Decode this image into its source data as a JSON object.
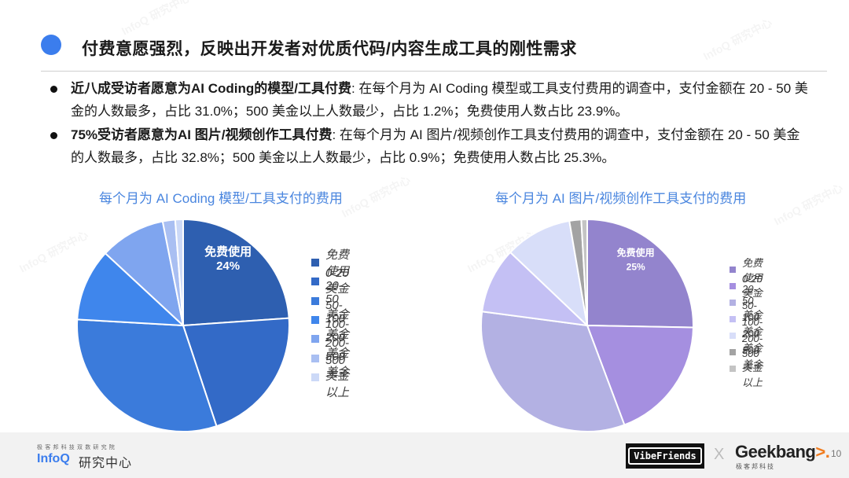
{
  "header": {
    "title": "付费意愿强烈，反映出开发者对优质代码/内容生成工具的刚性需求"
  },
  "bullets": [
    {
      "bold": "近八成受访者愿意为AI Coding的模型/工具付费",
      "text": ": 在每个月为 AI Coding 模型或工具支付费用的调查中，支付金额在 20 - 50 美金的人数最多，占比 31.0%；500 美金以上人数最少，占比 1.2%；免费使用人数占比 23.9%。"
    },
    {
      "bold": "75%受访者愿意为AI 图片/视频创作工具付费",
      "text": ": 在每个月为 AI 图片/视频创作工具支付费用的调查中，支付金额在 20 - 50 美金的人数最多，占比 32.8%；500 美金以上人数最少，占比 0.9%；免费使用人数占比 25.3%。"
    }
  ],
  "chart_data": [
    {
      "type": "pie",
      "title": "每个月为 AI Coding 模型/工具支付的费用",
      "categories": [
        "免费使用",
        "0-20美金",
        "20-50美金",
        "50-100美金",
        "100-200美金",
        "200-500美金",
        "500美金以上"
      ],
      "values": [
        23.9,
        21.0,
        31.0,
        11.0,
        10.0,
        1.9,
        1.2
      ],
      "colors": [
        "#2e5fb0",
        "#336ac7",
        "#3b7bdb",
        "#3f86ec",
        "#7fa5ef",
        "#a9bff2",
        "#ccd9f7"
      ],
      "data_labels": [
        {
          "category": "免费使用",
          "label": "免费使用",
          "value": "24%"
        }
      ],
      "legend_position": "right",
      "start_angle": "12 o'clock, clockwise"
    },
    {
      "type": "pie",
      "title": "每个月为 AI 图片/视频创作工具支付的费用",
      "categories": [
        "免费使用",
        "0-20美金",
        "20-50美金",
        "50-100美金",
        "100-200美金",
        "200-500美金",
        "500美金以上"
      ],
      "values": [
        25.3,
        19.0,
        32.8,
        10.0,
        10.2,
        1.8,
        0.9
      ],
      "colors": [
        "#9384cd",
        "#a58fe0",
        "#b3b1e3",
        "#c4c0f4",
        "#d8def9",
        "#a3a3a3",
        "#c4c4c4"
      ],
      "data_labels": [
        {
          "category": "免费使用",
          "label": "免费使用",
          "value": "25%"
        }
      ],
      "legend_position": "right",
      "start_angle": "12 o'clock, clockwise"
    }
  ],
  "footer": {
    "infoq_sub": "极客邦科技双数研究院",
    "infoq_logo": "InfoQ",
    "infoq_cn": "研究中心",
    "vibe": "VibeFriends",
    "cross": "X",
    "geek_main": "Geekbang",
    "geek_arrow": ">.",
    "geek_sub": "极客邦科技",
    "page_number": "10"
  },
  "watermark": "InfoQ 研究中心"
}
